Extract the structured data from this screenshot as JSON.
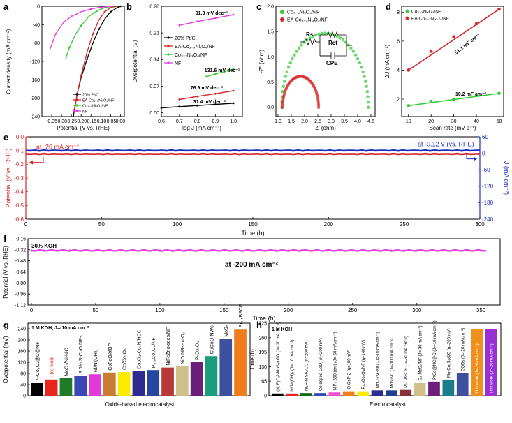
{
  "chart_data": [
    {
      "panel": "a",
      "type": "line",
      "xlabel": "Potential (V vs. RHE)",
      "ylabel": "Current density (mA cm⁻²)",
      "xlim": [
        -0.4,
        0.02
      ],
      "ylim": [
        -240,
        0
      ],
      "xticks": [
        -0.4,
        -0.35,
        -0.3,
        -0.25,
        -0.2,
        -0.15,
        -0.1,
        -0.05,
        0.0
      ],
      "xticklabels": [
        "",
        "-0.35",
        "-0.30",
        "-0.25",
        "-0.20",
        "-0.15",
        "-0.10",
        "-0.05",
        "0.00"
      ],
      "yticks": [
        0,
        -40,
        -80,
        -120,
        -160,
        -200,
        -240
      ],
      "legend": [
        "20% Pt/C",
        "EA-Co₃₋ₓNiₓO₄/NF",
        "Co₃₋ₓNiₓO₄/NF",
        "NF"
      ],
      "series": [
        {
          "name": "20% Pt/C",
          "color": "#000000",
          "x": [
            0.0,
            -0.02,
            -0.05,
            -0.08,
            -0.11,
            -0.14,
            -0.17,
            -0.2,
            -0.22,
            -0.24
          ],
          "y": [
            0,
            -4,
            -12,
            -28,
            -50,
            -80,
            -115,
            -155,
            -190,
            -240
          ]
        },
        {
          "name": "EA-Co₃₋ₓNiₓO₄/NF",
          "color": "#d62728",
          "x": [
            -0.02,
            -0.05,
            -0.08,
            -0.11,
            -0.14,
            -0.17,
            -0.2,
            -0.22,
            -0.235
          ],
          "y": [
            0,
            -3,
            -12,
            -30,
            -60,
            -100,
            -150,
            -190,
            -225
          ]
        },
        {
          "name": "Co₃₋ₓNiₓO₄/NF",
          "color": "#33cc33",
          "x": [
            -0.04,
            -0.08,
            -0.12,
            -0.16,
            -0.2,
            -0.23,
            -0.26,
            -0.28
          ],
          "y": [
            0,
            -3,
            -10,
            -22,
            -42,
            -62,
            -90,
            -115
          ]
        },
        {
          "name": "NF",
          "color": "#e040e0",
          "x": [
            -0.05,
            -0.1,
            -0.15,
            -0.2,
            -0.25,
            -0.29,
            -0.33,
            -0.36
          ],
          "y": [
            0,
            -2,
            -6,
            -12,
            -22,
            -35,
            -60,
            -95
          ]
        }
      ]
    },
    {
      "panel": "b",
      "type": "line",
      "xlabel": "log J (mA cm⁻²)",
      "ylabel": "Overpotential (V)",
      "xlim": [
        0.6,
        1.05
      ],
      "ylim": [
        -0.01,
        0.28
      ],
      "xticks": [
        0.6,
        0.7,
        0.8,
        0.9,
        1.0
      ],
      "xticklabels": [
        "0.6",
        "0.7",
        "0.8",
        "0.9",
        "1.0"
      ],
      "yticks": [
        0.0,
        0.07,
        0.14,
        0.21,
        0.28
      ],
      "yticklabels": [
        "0.00",
        "0.07",
        "0.14",
        "0.21",
        "0.28"
      ],
      "legend": [
        "20% Pt/C",
        "EA-Co₃₋ₓNiₓO₄/NF",
        "Co₃₋ₓNiₓO₄/NF",
        "NF"
      ],
      "series": [
        {
          "name": "20% Pt/C",
          "color": "#000000",
          "slope_label": "31.4 mV dec⁻¹",
          "x": [
            0.6,
            0.7,
            0.8,
            0.9,
            1.0
          ],
          "y": [
            0.013,
            0.016,
            0.019,
            0.022,
            0.025
          ]
        },
        {
          "name": "EA-Co₃₋ₓNiₓO₄/NF",
          "color": "#d62728",
          "slope_label": "76.9 mV dec⁻¹",
          "x": [
            0.7,
            0.8,
            0.9,
            1.0
          ],
          "y": [
            0.035,
            0.043,
            0.05,
            0.058
          ]
        },
        {
          "name": "Co₃₋ₓNiₓO₄/NF",
          "color": "#33cc33",
          "slope_label": "131.6 mV dec⁻¹",
          "x": [
            0.85,
            0.9,
            0.95,
            1.0
          ],
          "y": [
            0.095,
            0.102,
            0.108,
            0.115
          ]
        },
        {
          "name": "NF",
          "color": "#e040e0",
          "slope_label": "91.3 mV dec⁻¹",
          "x": [
            0.7,
            0.8,
            0.9,
            1.0
          ],
          "y": [
            0.23,
            0.24,
            0.249,
            0.258
          ]
        }
      ],
      "annotations": [
        "91.3 mV dec⁻¹",
        "131.6 mV dec⁻¹",
        "76.9 mV dec⁻¹",
        "31.4 mV dec⁻¹"
      ]
    },
    {
      "panel": "c",
      "type": "scatter",
      "xlabel": "Z' (ohm)",
      "ylabel": "-Z'' (ohm)",
      "xlim": [
        1.0,
        4.5
      ],
      "ylim": [
        -0.1,
        2.0
      ],
      "xticks": [
        1.0,
        1.5,
        2.0,
        2.5,
        3.0,
        3.5,
        4.0,
        4.5
      ],
      "xticklabels": [
        "1.0",
        "1.5",
        "2.0",
        "2.5",
        "3.0",
        "3.5",
        "4.0",
        "4.5"
      ],
      "yticks": [
        0.0,
        0.5,
        1.0,
        1.5,
        2.0
      ],
      "yticklabels": [
        "0.0",
        "0.5",
        "1.0",
        "1.5",
        "2.0"
      ],
      "legend": [
        "Co₃₋ₓNiₓO₄/NF",
        "EA-Co₃₋ₓNiₓO₄/NF"
      ],
      "circuit": {
        "rs": "Rs",
        "rct": "Rct",
        "cpe": "CPE"
      },
      "series": [
        {
          "name": "Co₃₋ₓNiₓO₄/NF",
          "color": "#33cc33",
          "center": 2.77,
          "radius": 1.63
        },
        {
          "name": "EA-Co₃₋ₓNiₓO₄/NF",
          "color": "#d62728",
          "center": 1.85,
          "radius": 0.68
        }
      ]
    },
    {
      "panel": "d",
      "type": "scatter",
      "xlabel": "Scan rate (mV s⁻¹)",
      "ylabel": "ΔJ (mA cm⁻²)",
      "xlim": [
        7,
        52
      ],
      "ylim": [
        0.8,
        8.4
      ],
      "xticks": [
        10,
        20,
        30,
        40,
        50
      ],
      "xticklabels": [
        "10",
        "20",
        "30",
        "40",
        "50"
      ],
      "yticks": [
        2,
        4,
        6,
        8
      ],
      "yticklabels": [
        "2",
        "4",
        "6",
        "8"
      ],
      "legend": [
        "Co₃₋ₓNiₓO₄/NF",
        "EA-Co₃₋ₓNiₓO₄/NF"
      ],
      "series": [
        {
          "name": "Co₃₋ₓNiₓO₄/NF",
          "color": "#33cc33",
          "slope_label": "10.2 mF cm⁻²",
          "x": [
            10,
            20,
            30,
            40,
            50
          ],
          "y": [
            1.55,
            1.85,
            2.0,
            2.25,
            2.4
          ]
        },
        {
          "name": "EA-Co₃₋ₓNiₓO₄/NF",
          "color": "#d62728",
          "slope_label": "51.1 mF cm⁻²",
          "x": [
            10,
            20,
            30,
            40,
            50
          ],
          "y": [
            4.0,
            5.3,
            6.3,
            7.2,
            8.2
          ]
        }
      ]
    },
    {
      "panel": "e",
      "type": "line",
      "xlabel": "Time (h)",
      "ylabel_left": "Potential (V vs. RHE)",
      "ylabel_right": "J (mA cm⁻²)",
      "xlim": [
        0,
        300
      ],
      "ylim_left": [
        -0.6,
        0.0
      ],
      "ylim_right": [
        -240,
        60
      ],
      "xticks": [
        0,
        50,
        100,
        150,
        200,
        250,
        300
      ],
      "xticklabels": [
        "0",
        "50",
        "100",
        "150",
        "200",
        "250",
        "300"
      ],
      "yticks_left": [
        0.0,
        -0.1,
        -0.2,
        -0.3,
        -0.4,
        -0.5,
        -0.6
      ],
      "yticklabels_left": [
        "0.0",
        "-0.1",
        "-0.2",
        "-0.3",
        "-0.4",
        "-0.5",
        "-0.6"
      ],
      "yticks_right": [
        60,
        0,
        -60,
        -120,
        -180,
        -240
      ],
      "yticklabels_right": [
        "60",
        "0",
        "-60",
        "-120",
        "-180",
        "-240"
      ],
      "series": [
        {
          "name": "current density",
          "axis": "right",
          "color": "#1f2dbf",
          "constant": 10,
          "label": "at -0.12 V (vs. RHE)"
        },
        {
          "name": "potential",
          "axis": "left",
          "color": "#d62728",
          "constant": -0.125,
          "label": "at -20 mA cm⁻²"
        }
      ]
    },
    {
      "panel": "f",
      "type": "line",
      "xlabel": "Time (h)",
      "ylabel": "Potential (V vs. RHE)",
      "xlim": [
        0,
        360
      ],
      "ylim": [
        -1.12,
        -0.16
      ],
      "xticks": [
        0,
        50,
        100,
        150,
        200,
        250,
        300,
        350
      ],
      "xticklabels": [
        "0",
        "50",
        "100",
        "150",
        "200",
        "250",
        "300",
        "350"
      ],
      "yticks": [
        -0.16,
        -0.32,
        -0.48,
        -0.64,
        -0.8,
        -0.96,
        -1.12
      ],
      "yticklabels": [
        "-0.16",
        "-0.32",
        "-0.48",
        "-0.64",
        "-0.80",
        "-0.96",
        "-1.12"
      ],
      "electrolyte": "30% KOH",
      "series": [
        {
          "name": "potential",
          "color": "#e040e0",
          "constant": -0.33,
          "label": "at -200 mA cm⁻²"
        }
      ]
    },
    {
      "panel": "g",
      "type": "bar",
      "xlabel": "Oxide-based electrocatalyst",
      "ylabel": "Overpotential (mV)",
      "ylim": [
        0,
        260
      ],
      "yticks": [
        0,
        40,
        80,
        120,
        160,
        200,
        240
      ],
      "yticklabels": [
        "0",
        "40",
        "80",
        "120",
        "160",
        "200",
        "240"
      ],
      "condition": "1 M KOH, J=-10 mA cm⁻²",
      "categories": [
        "N-Co₃O₄@C@NF",
        "This work",
        "MoO₂/Ni-NiO",
        "3.0% S-CoO NRs",
        "Ni/Ni(OH)₂",
        "CoFeO@BP",
        "Co/Co₃O₄",
        "Co₃O₄-Co₃N/HCC",
        "P₈.₈Co₃O₄/NF",
        "NiFeZr oxides/NF",
        "NiO NRs-m-Oᵥ",
        "P-Co₃O₄",
        "CuCoO-NWs",
        "MoS₂",
        "Pr₀.₅BSCF"
      ],
      "values": [
        46,
        58,
        63,
        72,
        77,
        83,
        85,
        88,
        92,
        101,
        105,
        120,
        142,
        203,
        237
      ],
      "colors": [
        "#000000",
        "#e8261f",
        "#1f7a2a",
        "#3a47b5",
        "#e23ad9",
        "#c97b32",
        "#ffea00",
        "#2f2a8f",
        "#26479e",
        "#b53a38",
        "#d1c08a",
        "#6a1f7a",
        "#1b9c7c",
        "#3f4fa0",
        "#f07d1c"
      ]
    },
    {
      "panel": "h",
      "type": "bar",
      "xlabel": "Electrocatalyst",
      "ylabel": "Time (h)",
      "ylim": [
        0,
        325
      ],
      "yticks": [
        0,
        65,
        130,
        195,
        260,
        325
      ],
      "yticklabels": [
        "0",
        "65",
        "130",
        "195",
        "260",
        "325"
      ],
      "condition": "1 M KOH",
      "categories": [
        "(N, F)O₂³-MoS₂/rGO (J=-10 mA cm⁻²)",
        "Ni/Ni(OH)₂ (J=-10 mA cm⁻²)",
        "Ni₂P-NiSe₂/CC (η=200 mV)",
        "Co-doped CeO₂ (η=200 mV)",
        "NiP₂-650 (cm) (J=-50 mA cm⁻²)",
        "O-CoP-2 (η=100 mV)",
        "P₈.₈Co₃O₄/NF (η=140 mV)",
        "MoO₂/Ni-NiO (J=-10 mA cm⁻²)",
        "MoNiNC (J=-100 mA cm⁻²)",
        "Pr₀.₅BSCF (J=-50 mA cm⁻²)",
        "C₃-MoS₂/NF (J=-30 mA cm⁻²)",
        "PtCo@NC@C (J=-10 mA cm⁻²)",
        "Mo-Co₃S₈@C (η=200 mV)",
        "CQDs (J=-20 mA cm⁻²)",
        "This work (J=-20 mA cm⁻²)",
        "This work (J=-20 mA cm⁻²)"
      ],
      "values": [
        10,
        10,
        12,
        12,
        15,
        20,
        20,
        24,
        24,
        26,
        58,
        63,
        72,
        100,
        300,
        300
      ],
      "colors": [
        "#000000",
        "#e8261f",
        "#0f6a1e",
        "#2c49b5",
        "#f04fd4",
        "#f07d1c",
        "#ffea00",
        "#2b2c8f",
        "#1f3f8f",
        "#8c2f3a",
        "#d1c08a",
        "#6a1f7a",
        "#1b7c8c",
        "#3f4fa0",
        "#f0901c",
        "#9b2fd6"
      ],
      "label_styles": [
        "dark",
        "dark",
        "dark",
        "dark",
        "dark",
        "dark",
        "dark",
        "dark",
        "dark",
        "dark",
        "dark",
        "dark",
        "dark",
        "dark",
        "orange",
        "purple"
      ]
    }
  ]
}
